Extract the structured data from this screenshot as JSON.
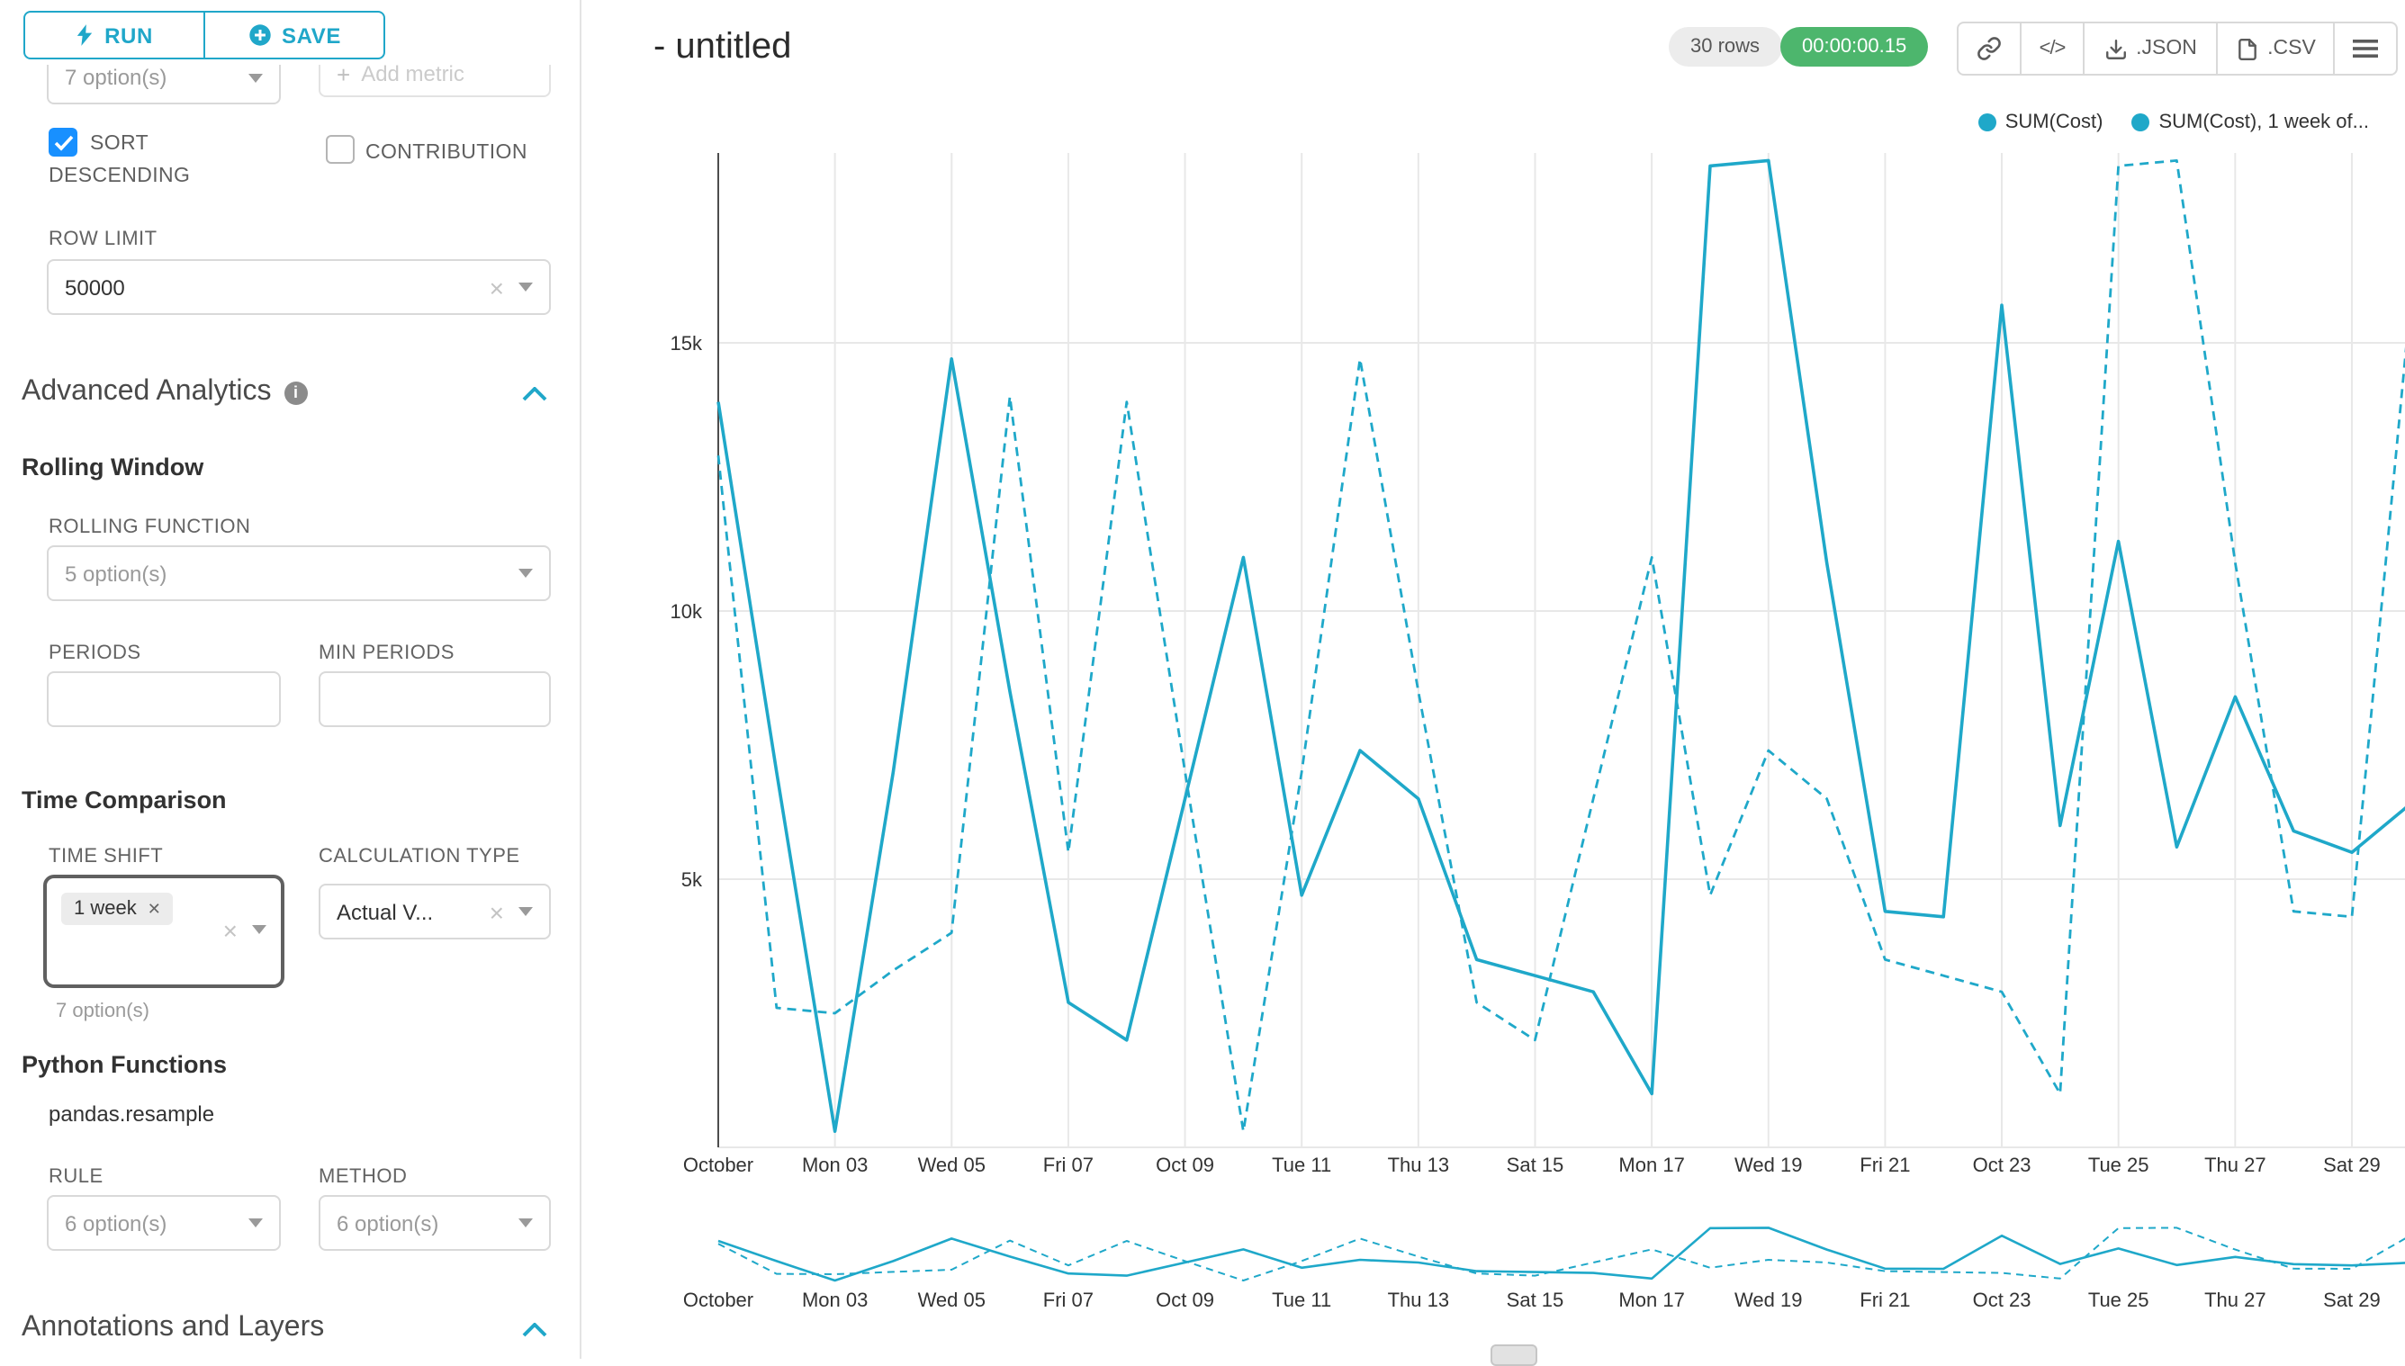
{
  "colors": {
    "accent": "#20a7c9",
    "timer_badge_bg": "#4db66d",
    "series_line": "#1FA8C9",
    "checkbox_checked": "#1890ff"
  },
  "toolbar": {
    "run_label": "RUN",
    "save_label": "SAVE"
  },
  "sidebar": {
    "metrics_value": "7 option(s)",
    "add_metric_label": "Add metric",
    "sort_descending_label": "SORT DESCENDING",
    "contribution_label": "CONTRIBUTION",
    "row_limit_label": "ROW LIMIT",
    "row_limit_value": "50000",
    "advanced_analytics_title": "Advanced Analytics",
    "rolling_window_title": "Rolling Window",
    "rolling_function_label": "ROLLING FUNCTION",
    "rolling_function_value": "5 option(s)",
    "periods_label": "PERIODS",
    "min_periods_label": "MIN PERIODS",
    "time_comparison_title": "Time Comparison",
    "time_shift_label": "TIME SHIFT",
    "time_shift_tag": "1 week",
    "time_shift_helper": "7 option(s)",
    "calculation_type_label": "CALCULATION TYPE",
    "calculation_type_value": "Actual V...",
    "python_functions_title": "Python Functions",
    "pandas_resample": "pandas.resample",
    "rule_label": "RULE",
    "rule_value": "6 option(s)",
    "method_label": "METHOD",
    "method_value": "6 option(s)",
    "annotations_title": "Annotations and Layers"
  },
  "header": {
    "title": "- untitled",
    "rows_badge": "30 rows",
    "timer_badge": "00:00:00.15",
    "code_label": "</>",
    "json_label": ".JSON",
    "csv_label": ".CSV"
  },
  "chart_data": {
    "type": "line",
    "title": "",
    "xlabel": "",
    "ylabel": "",
    "grid": true,
    "legend_position": "top-right",
    "line_color": "#1FA8C9",
    "ylim": [
      0,
      18500
    ],
    "y_ticks": [
      {
        "value": 5000,
        "label": "5k"
      },
      {
        "value": 10000,
        "label": "10k"
      },
      {
        "value": 15000,
        "label": "15k"
      }
    ],
    "x": [
      "Oct 01",
      "Oct 02",
      "Oct 03",
      "Oct 04",
      "Oct 05",
      "Oct 06",
      "Oct 07",
      "Oct 08",
      "Oct 09",
      "Oct 10",
      "Oct 11",
      "Oct 12",
      "Oct 13",
      "Oct 14",
      "Oct 15",
      "Oct 16",
      "Oct 17",
      "Oct 18",
      "Oct 19",
      "Oct 20",
      "Oct 21",
      "Oct 22",
      "Oct 23",
      "Oct 24",
      "Oct 25",
      "Oct 26",
      "Oct 27",
      "Oct 28",
      "Oct 29",
      "Oct 30"
    ],
    "x_tick_labels": [
      "October",
      "Mon 03",
      "Wed 05",
      "Fri 07",
      "Oct 09",
      "Tue 11",
      "Thu 13",
      "Sat 15",
      "Mon 17",
      "Wed 19",
      "Fri 21",
      "Oct 23",
      "Tue 25",
      "Thu 27",
      "Sat 29"
    ],
    "series": [
      {
        "name": "SUM(Cost)",
        "style": "solid",
        "values": [
          13900,
          7000,
          300,
          7000,
          14700,
          8500,
          2700,
          2000,
          6500,
          11000,
          4700,
          7400,
          6500,
          3500,
          3200,
          2900,
          1000,
          18300,
          18400,
          10900,
          4400,
          4300,
          15700,
          6000,
          11300,
          5600,
          8400,
          5900,
          5500,
          6400
        ]
      },
      {
        "name": "SUM(Cost), 1 week of...",
        "style": "dashed",
        "values": [
          12900,
          2600,
          2500,
          3300,
          4000,
          14000,
          5500,
          13900,
          7000,
          300,
          7000,
          14700,
          8500,
          2700,
          2000,
          6500,
          11000,
          4700,
          7400,
          6500,
          3500,
          3200,
          2900,
          1000,
          18300,
          18400,
          10900,
          4400,
          4300,
          15700
        ]
      }
    ]
  }
}
